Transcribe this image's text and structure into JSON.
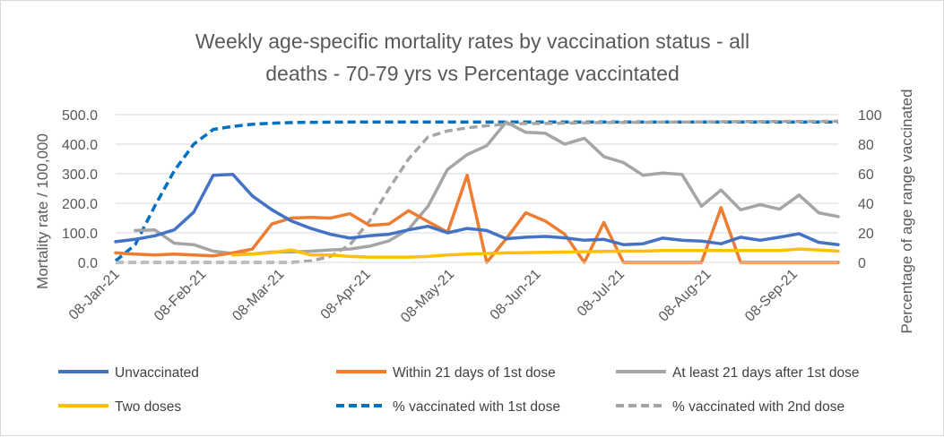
{
  "chart_data": {
    "type": "line",
    "title_lines": [
      "Weekly age-specific mortality rates by vaccination status - all",
      "deaths - 70-79 yrs vs Percentage vaccintated"
    ],
    "ylabel": "Mortality rate / 100,000",
    "y2label": "Percentage of age range vaccinated",
    "ylim": [
      0,
      500
    ],
    "y2lim": [
      0,
      100
    ],
    "yticks": [
      "0.0",
      "100.0",
      "200.0",
      "300.0",
      "400.0",
      "500.0"
    ],
    "y2ticks": [
      "0",
      "20",
      "40",
      "60",
      "80",
      "100"
    ],
    "x_week_labels_shown": [
      "08-Jan-21",
      "08-Feb-21",
      "08-Mar-21",
      "08-Apr-21",
      "08-May-21",
      "08-Jun-21",
      "08-Jul-21",
      "08-Aug-21",
      "08-Sep-21"
    ],
    "x_label_week_index": [
      0,
      4.43,
      8.43,
      12.86,
      17.14,
      21.57,
      25.86,
      30.29,
      34.71
    ],
    "weeks": 38,
    "grid": true,
    "legend_position": "bottom",
    "series": [
      {
        "name": "Unvaccinated",
        "axis": "left",
        "color": "#4472C4",
        "dash": false,
        "values": [
          70,
          78,
          90,
          110,
          170,
          295,
          298,
          225,
          178,
          140,
          115,
          95,
          82,
          90,
          95,
          110,
          122,
          100,
          115,
          108,
          80,
          85,
          88,
          83,
          75,
          78,
          60,
          63,
          82,
          75,
          72,
          63,
          85,
          75,
          85,
          97,
          68,
          60
        ]
      },
      {
        "name": "Within 21 days of 1st dose",
        "axis": "left",
        "color": "#ED7D31",
        "dash": false,
        "values": [
          32,
          28,
          25,
          28,
          25,
          22,
          32,
          45,
          130,
          150,
          152,
          150,
          165,
          125,
          130,
          175,
          138,
          102,
          295,
          0,
          80,
          168,
          140,
          95,
          0,
          135,
          0,
          0,
          0,
          0,
          0,
          185,
          0,
          0,
          0,
          0,
          0,
          0
        ]
      },
      {
        "name": "At least 21 days after 1st dose",
        "axis": "left",
        "color": "#A5A5A5",
        "dash": false,
        "values": [
          null,
          108,
          110,
          65,
          60,
          38,
          30,
          28,
          35,
          35,
          38,
          42,
          45,
          55,
          73,
          112,
          190,
          315,
          365,
          395,
          475,
          440,
          437,
          400,
          420,
          358,
          338,
          295,
          302,
          298,
          190,
          245,
          178,
          195,
          180,
          228,
          168,
          155
        ]
      },
      {
        "name": "Two doses",
        "axis": "left",
        "color": "#FFC000",
        "dash": false,
        "values": [
          null,
          null,
          null,
          null,
          null,
          null,
          25,
          28,
          33,
          42,
          25,
          25,
          20,
          18,
          18,
          18,
          20,
          25,
          28,
          30,
          32,
          33,
          34,
          35,
          36,
          37,
          38,
          38,
          40,
          40,
          40,
          40,
          40,
          40,
          40,
          45,
          42,
          38
        ]
      },
      {
        "name": "% vaccinated with 1st dose",
        "axis": "right",
        "color": "#0070C0",
        "dash": true,
        "values": [
          1,
          12,
          38,
          62,
          80,
          90,
          92,
          93.5,
          94.2,
          94.6,
          94.8,
          94.9,
          95,
          95,
          95,
          95,
          95,
          95,
          95,
          95,
          95,
          95,
          95,
          95,
          95,
          95,
          95,
          95,
          95,
          95,
          95,
          95,
          95,
          95,
          95,
          95,
          95,
          95
        ]
      },
      {
        "name": "% vaccinated with 2nd dose",
        "axis": "right",
        "color": "#A5A5A5",
        "dash": true,
        "values": [
          0,
          0,
          0,
          0,
          0,
          0,
          0,
          0,
          0,
          0,
          1,
          4,
          12,
          28,
          50,
          70,
          85,
          89,
          91,
          92.5,
          93.5,
          94,
          94,
          94.3,
          94.5,
          94.6,
          94.7,
          94.8,
          94.9,
          95,
          95.1,
          95.2,
          95.3,
          95.3,
          95.4,
          95.4,
          95.4,
          95.5
        ]
      }
    ]
  }
}
